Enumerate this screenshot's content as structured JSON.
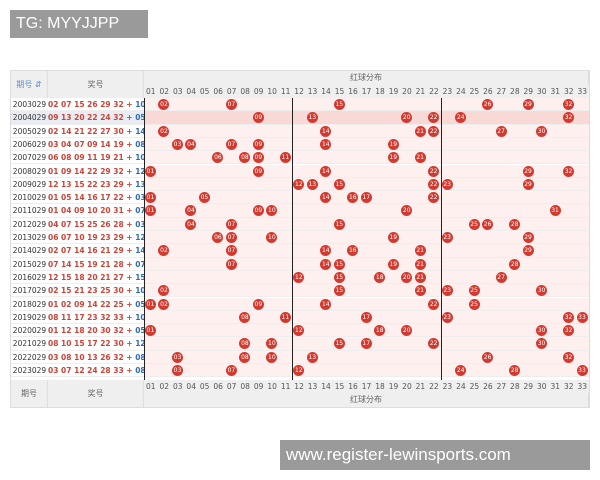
{
  "watermark_top": "TG: MYYJJPP",
  "watermark_bottom": "www.register-lewinsports.com",
  "header": {
    "issue": "期号",
    "numbers": "奖号",
    "red_dist": "红球分布",
    "sort_icon": "sort-icon"
  },
  "footer": {
    "issue": "期号",
    "numbers": "奖号",
    "red_dist": "红球分布"
  },
  "colors": {
    "red_ball": "#d23a30",
    "blue_number": "#2e6bb5",
    "red_number": "#c8453a",
    "highlight_row": "#f9d9d6"
  },
  "highlighted_issue": "2004029",
  "rows": [
    {
      "issue": "2003029",
      "red": [
        "02",
        "07",
        "15",
        "26",
        "29",
        "32"
      ],
      "blue": "10"
    },
    {
      "issue": "2004029",
      "red": [
        "09",
        "13",
        "20",
        "22",
        "24",
        "32"
      ],
      "blue": "05"
    },
    {
      "issue": "2005029",
      "red": [
        "02",
        "14",
        "21",
        "22",
        "27",
        "30"
      ],
      "blue": "14"
    },
    {
      "issue": "2006029",
      "red": [
        "03",
        "04",
        "07",
        "09",
        "14",
        "19"
      ],
      "blue": "08"
    },
    {
      "issue": "2007029",
      "red": [
        "06",
        "08",
        "09",
        "11",
        "19",
        "21"
      ],
      "blue": "10"
    },
    {
      "issue": "2008029",
      "red": [
        "01",
        "09",
        "14",
        "22",
        "29",
        "32"
      ],
      "blue": "12"
    },
    {
      "issue": "2009029",
      "red": [
        "12",
        "13",
        "15",
        "22",
        "23",
        "29"
      ],
      "blue": "13"
    },
    {
      "issue": "2010029",
      "red": [
        "01",
        "05",
        "14",
        "16",
        "17",
        "22"
      ],
      "blue": "03"
    },
    {
      "issue": "2011029",
      "red": [
        "01",
        "04",
        "09",
        "10",
        "20",
        "31"
      ],
      "blue": "07"
    },
    {
      "issue": "2012029",
      "red": [
        "04",
        "07",
        "15",
        "25",
        "26",
        "28"
      ],
      "blue": "03"
    },
    {
      "issue": "2013029",
      "red": [
        "06",
        "07",
        "10",
        "19",
        "23",
        "29"
      ],
      "blue": "12"
    },
    {
      "issue": "2014029",
      "red": [
        "02",
        "07",
        "14",
        "16",
        "21",
        "29"
      ],
      "blue": "14"
    },
    {
      "issue": "2015029",
      "red": [
        "07",
        "14",
        "15",
        "19",
        "21",
        "28"
      ],
      "blue": "07"
    },
    {
      "issue": "2016029",
      "red": [
        "12",
        "15",
        "18",
        "20",
        "21",
        "27"
      ],
      "blue": "15"
    },
    {
      "issue": "2017029",
      "red": [
        "02",
        "15",
        "21",
        "23",
        "25",
        "30"
      ],
      "blue": "10"
    },
    {
      "issue": "2018029",
      "red": [
        "01",
        "02",
        "09",
        "14",
        "22",
        "25"
      ],
      "blue": "05"
    },
    {
      "issue": "2019029",
      "red": [
        "08",
        "11",
        "17",
        "23",
        "32",
        "33"
      ],
      "blue": "10"
    },
    {
      "issue": "2020029",
      "red": [
        "01",
        "12",
        "18",
        "20",
        "30",
        "32"
      ],
      "blue": "05"
    },
    {
      "issue": "2021029",
      "red": [
        "08",
        "10",
        "15",
        "17",
        "22",
        "30"
      ],
      "blue": "12"
    },
    {
      "issue": "2022029",
      "red": [
        "03",
        "08",
        "10",
        "13",
        "26",
        "32"
      ],
      "blue": "08"
    },
    {
      "issue": "2023029",
      "red": [
        "03",
        "07",
        "12",
        "24",
        "28",
        "33"
      ],
      "blue": "08"
    }
  ]
}
